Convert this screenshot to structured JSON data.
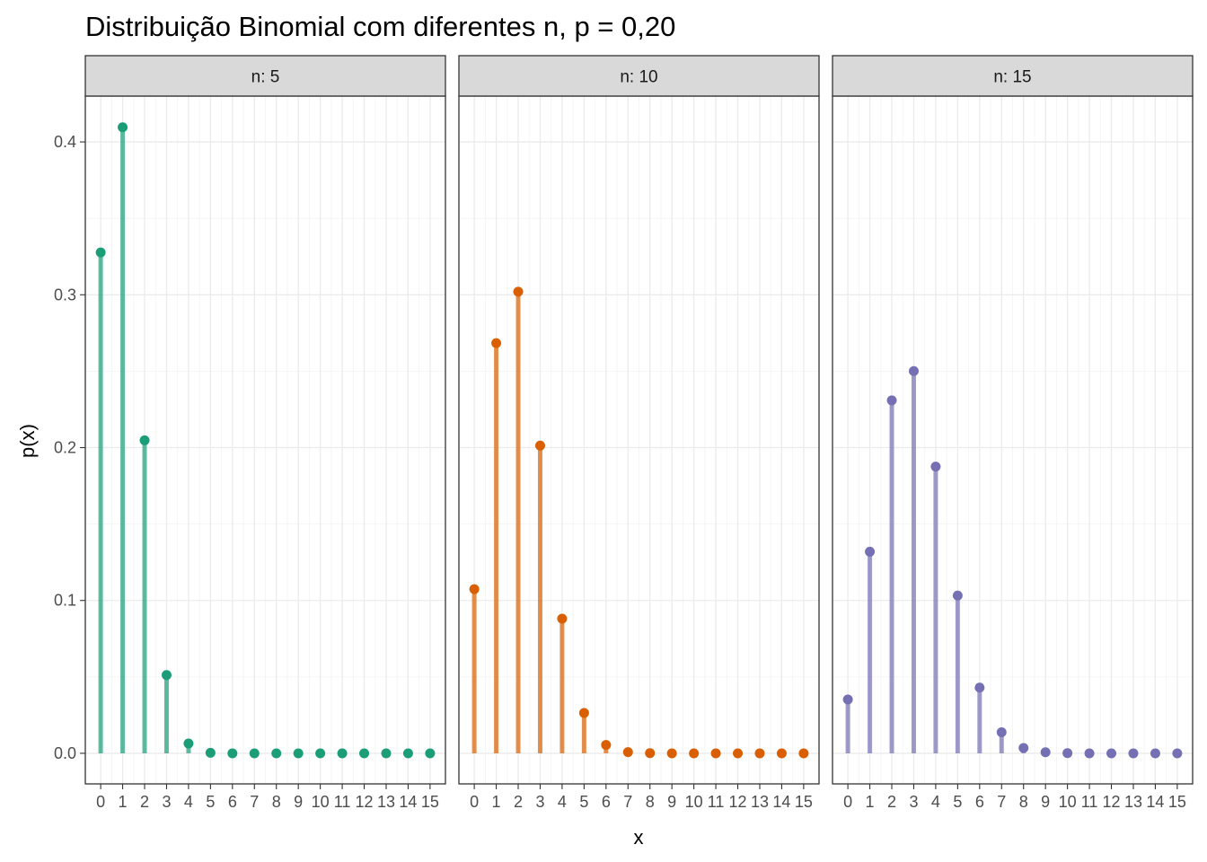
{
  "chart_data": {
    "type": "lollipop",
    "title": "Distribuição Binomial com diferentes n, p = 0,20",
    "xlabel": "x",
    "ylabel": "p(x)",
    "x": [
      0,
      1,
      2,
      3,
      4,
      5,
      6,
      7,
      8,
      9,
      10,
      11,
      12,
      13,
      14,
      15
    ],
    "x_tick_labels": [
      "0",
      "1",
      "2",
      "3",
      "4",
      "5",
      "6",
      "7",
      "8",
      "9",
      "10",
      "11",
      "12",
      "13",
      "14",
      "15"
    ],
    "ylim": [
      -0.02,
      0.43
    ],
    "y_ticks": [
      0.0,
      0.1,
      0.2,
      0.3,
      0.4
    ],
    "y_tick_labels": [
      "0.0",
      "0.1",
      "0.2",
      "0.3",
      "0.4"
    ],
    "grid": true,
    "facet_var": "n",
    "panels": [
      {
        "label": "n: 5",
        "color": "#1b9e77",
        "values": [
          0.32768,
          0.4096,
          0.2048,
          0.0512,
          0.0064,
          0.00032,
          0,
          0,
          0,
          0,
          0,
          0,
          0,
          0,
          0,
          0
        ]
      },
      {
        "label": "n: 10",
        "color": "#d95f02",
        "values": [
          0.1074,
          0.2684,
          0.302,
          0.2013,
          0.0881,
          0.0264,
          0.0055,
          0.0008,
          0.0001,
          0,
          0,
          0,
          0,
          0,
          0,
          0
        ]
      },
      {
        "label": "n: 15",
        "color": "#7570b3",
        "values": [
          0.0352,
          0.1319,
          0.2309,
          0.2501,
          0.1876,
          0.1032,
          0.043,
          0.0138,
          0.0035,
          0.0007,
          0.0001,
          0,
          0,
          0,
          0,
          0
        ]
      }
    ]
  }
}
